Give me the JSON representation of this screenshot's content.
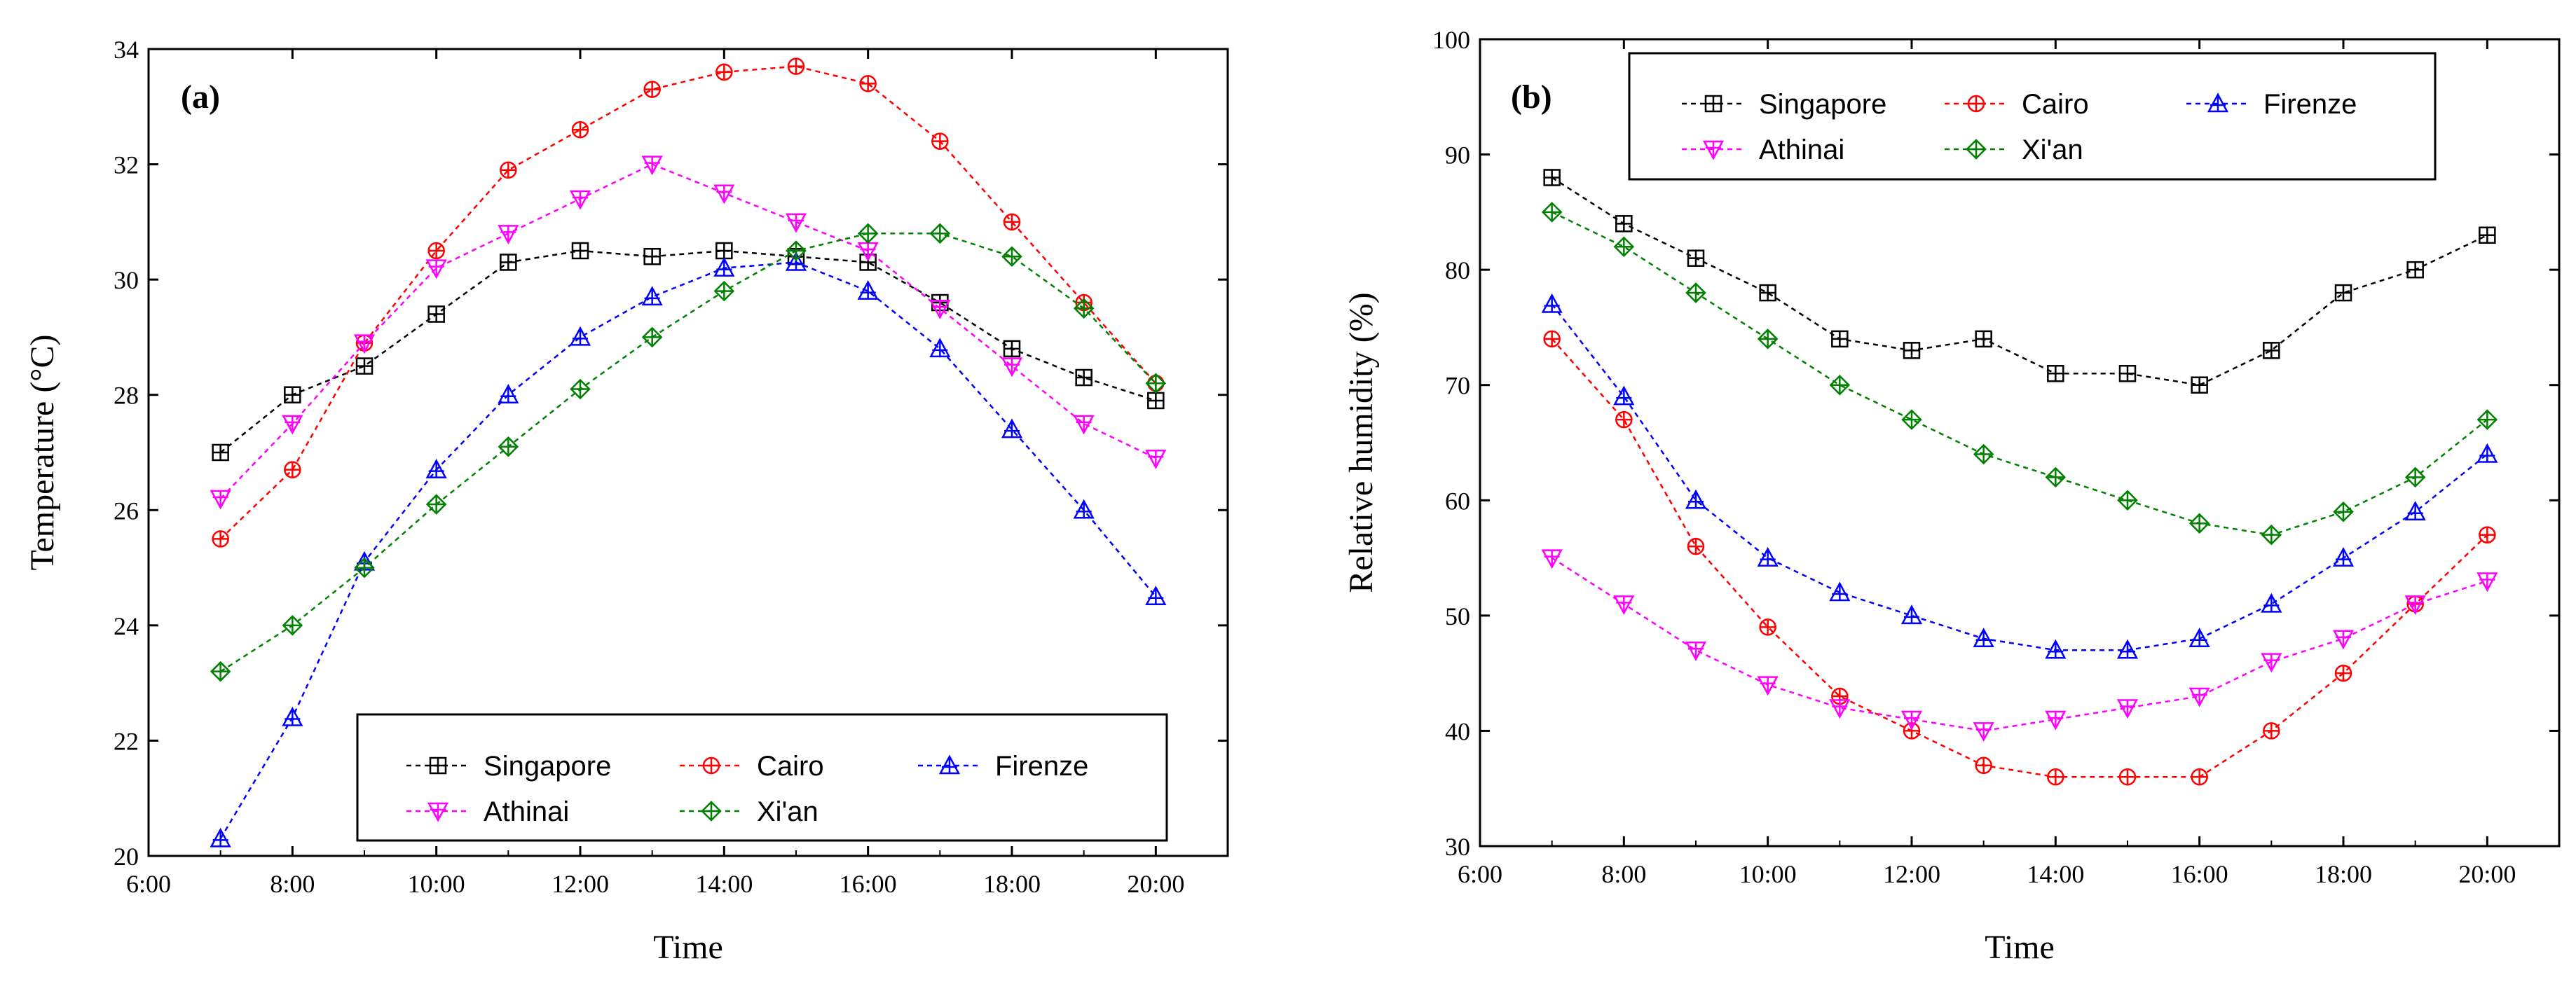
{
  "chart_data": [
    {
      "type": "line",
      "panel_label": "(a)",
      "xlabel": "Time",
      "ylabel": "Temperature (°C)",
      "xlim": [
        6,
        21
      ],
      "ylim": [
        20,
        34
      ],
      "x_tick_values": [
        6,
        8,
        10,
        12,
        14,
        16,
        18,
        20
      ],
      "x_tick_labels": [
        "6:00",
        "8:00",
        "10:00",
        "12:00",
        "14:00",
        "16:00",
        "18:00",
        "20:00"
      ],
      "y_tick_values": [
        20,
        22,
        24,
        26,
        28,
        30,
        32,
        34
      ],
      "legend_position": "bottom-right",
      "x": [
        7,
        8,
        9,
        10,
        11,
        12,
        13,
        14,
        15,
        16,
        17,
        18,
        19,
        20
      ],
      "series": [
        {
          "name": "Singapore",
          "color": "#000000",
          "marker": "square-plus",
          "values": [
            27.0,
            28.0,
            28.5,
            29.4,
            30.3,
            30.5,
            30.4,
            30.5,
            30.4,
            30.3,
            29.6,
            28.8,
            28.3,
            27.9
          ]
        },
        {
          "name": "Cairo",
          "color": "#ff0000",
          "marker": "circle-plus",
          "values": [
            25.5,
            26.7,
            28.9,
            30.5,
            31.9,
            32.6,
            33.3,
            33.6,
            33.7,
            33.4,
            32.4,
            31.0,
            29.6,
            28.2
          ]
        },
        {
          "name": "Firenze",
          "color": "#0000ff",
          "marker": "triangle-up",
          "values": [
            20.3,
            22.4,
            25.1,
            26.7,
            28.0,
            29.0,
            29.7,
            30.2,
            30.3,
            29.8,
            28.8,
            27.4,
            26.0,
            24.5
          ]
        },
        {
          "name": "Athinai",
          "color": "#ff00ff",
          "marker": "triangle-down",
          "values": [
            26.2,
            27.5,
            28.9,
            30.2,
            30.8,
            31.4,
            32.0,
            31.5,
            31.0,
            30.5,
            29.5,
            28.5,
            27.5,
            26.9
          ]
        },
        {
          "name": "Xi'an",
          "color": "#008000",
          "marker": "diamond-plus",
          "values": [
            23.2,
            24.0,
            25.0,
            26.1,
            27.1,
            28.1,
            29.0,
            29.8,
            30.5,
            30.8,
            30.8,
            30.4,
            29.5,
            28.2
          ]
        }
      ]
    },
    {
      "type": "line",
      "panel_label": "(b)",
      "xlabel": "Time",
      "ylabel": "Relative humidity (%)",
      "xlim": [
        6,
        21
      ],
      "ylim": [
        30,
        100
      ],
      "x_tick_values": [
        6,
        8,
        10,
        12,
        14,
        16,
        18,
        20
      ],
      "x_tick_labels": [
        "6:00",
        "8:00",
        "10:00",
        "12:00",
        "14:00",
        "16:00",
        "18:00",
        "20:00"
      ],
      "y_tick_values": [
        30,
        40,
        50,
        60,
        70,
        80,
        90,
        100
      ],
      "legend_position": "top",
      "x": [
        7,
        8,
        9,
        10,
        11,
        12,
        13,
        14,
        15,
        16,
        17,
        18,
        19,
        20
      ],
      "series": [
        {
          "name": "Singapore",
          "color": "#000000",
          "marker": "square-plus",
          "values": [
            88,
            84,
            81,
            78,
            74,
            73,
            74,
            71,
            71,
            70,
            73,
            78,
            80,
            83
          ]
        },
        {
          "name": "Cairo",
          "color": "#ff0000",
          "marker": "circle-plus",
          "values": [
            74,
            67,
            56,
            49,
            43,
            40,
            37,
            36,
            36,
            36,
            40,
            45,
            51,
            57
          ]
        },
        {
          "name": "Firenze",
          "color": "#0000ff",
          "marker": "triangle-up",
          "values": [
            77,
            69,
            60,
            55,
            52,
            50,
            48,
            47,
            47,
            48,
            51,
            55,
            59,
            64
          ]
        },
        {
          "name": "Athinai",
          "color": "#ff00ff",
          "marker": "triangle-down",
          "values": [
            55,
            51,
            47,
            44,
            42,
            41,
            40,
            41,
            42,
            43,
            46,
            48,
            51,
            53
          ]
        },
        {
          "name": "Xi'an",
          "color": "#008000",
          "marker": "diamond-plus",
          "values": [
            85,
            82,
            78,
            74,
            70,
            67,
            64,
            62,
            60,
            58,
            57,
            59,
            62,
            67
          ]
        }
      ]
    }
  ]
}
